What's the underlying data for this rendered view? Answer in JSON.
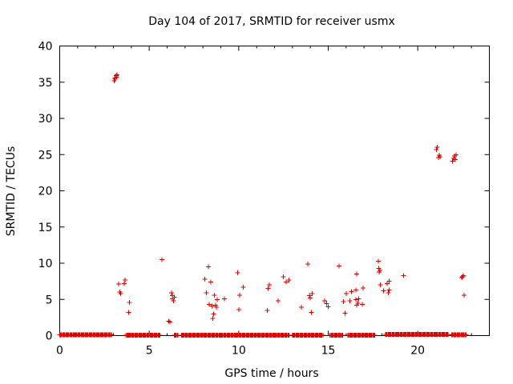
{
  "chart_data": {
    "type": "scatter",
    "title": "Day 104 of 2017, SRMTID for receiver usmx",
    "xlabel": "GPS time / hours",
    "ylabel": "SRMTID / TECUs",
    "xlim": [
      0,
      24
    ],
    "ylim": [
      0,
      40
    ],
    "xticks": [
      0,
      5,
      10,
      15,
      20
    ],
    "yticks": [
      0,
      5,
      10,
      15,
      20,
      25,
      30,
      35,
      40
    ],
    "grid": false,
    "marker": "+",
    "color": "#e00000",
    "series": [
      {
        "baseline_segments": [
          [
            0.0,
            2.9,
            0.1
          ],
          [
            3.7,
            5.6,
            0.05
          ],
          [
            6.4,
            6.6,
            0.05
          ],
          [
            6.8,
            12.8,
            0.05
          ],
          [
            13.0,
            14.7,
            0.05
          ],
          [
            15.1,
            15.8,
            0.05
          ],
          [
            16.1,
            17.6,
            0.05
          ],
          [
            18.2,
            21.7,
            0.15
          ],
          [
            21.9,
            22.7,
            0.1
          ]
        ],
        "points": [
          [
            3.05,
            35.2
          ],
          [
            3.1,
            35.6
          ],
          [
            3.15,
            35.9
          ],
          [
            3.2,
            36.0
          ],
          [
            3.08,
            35.4
          ],
          [
            3.18,
            35.7
          ],
          [
            3.3,
            7.1
          ],
          [
            3.35,
            6.0
          ],
          [
            3.4,
            5.8
          ],
          [
            3.6,
            7.2
          ],
          [
            3.65,
            7.7
          ],
          [
            3.85,
            3.2
          ],
          [
            3.9,
            4.6
          ],
          [
            5.7,
            10.5
          ],
          [
            6.1,
            2.0
          ],
          [
            6.15,
            1.9
          ],
          [
            6.25,
            5.9
          ],
          [
            6.3,
            5.1
          ],
          [
            6.35,
            4.8
          ],
          [
            6.4,
            5.3
          ],
          [
            6.3,
            5.5
          ],
          [
            8.1,
            7.8
          ],
          [
            8.2,
            5.9
          ],
          [
            8.3,
            9.5
          ],
          [
            8.35,
            4.3
          ],
          [
            8.45,
            7.4
          ],
          [
            8.5,
            4.1
          ],
          [
            8.55,
            2.4
          ],
          [
            8.6,
            3.0
          ],
          [
            8.65,
            5.6
          ],
          [
            8.7,
            4.2
          ],
          [
            8.75,
            3.9
          ],
          [
            8.8,
            5.0
          ],
          [
            9.2,
            5.1
          ],
          [
            9.95,
            8.7
          ],
          [
            10.0,
            3.6
          ],
          [
            10.05,
            5.6
          ],
          [
            10.25,
            6.7
          ],
          [
            11.6,
            3.5
          ],
          [
            11.65,
            6.5
          ],
          [
            11.7,
            7.0
          ],
          [
            12.2,
            4.8
          ],
          [
            12.5,
            8.1
          ],
          [
            12.65,
            7.4
          ],
          [
            12.8,
            7.7
          ],
          [
            13.5,
            3.9
          ],
          [
            13.85,
            9.9
          ],
          [
            13.95,
            5.5
          ],
          [
            14.0,
            5.2
          ],
          [
            14.05,
            3.2
          ],
          [
            14.1,
            5.8
          ],
          [
            14.8,
            4.8
          ],
          [
            14.9,
            4.4
          ],
          [
            15.0,
            4.0
          ],
          [
            15.6,
            9.6
          ],
          [
            15.85,
            4.7
          ],
          [
            15.95,
            3.1
          ],
          [
            16.0,
            5.8
          ],
          [
            16.2,
            4.8
          ],
          [
            16.3,
            6.1
          ],
          [
            16.55,
            5.0
          ],
          [
            16.6,
            4.2
          ],
          [
            16.55,
            6.3
          ],
          [
            16.6,
            8.5
          ],
          [
            16.65,
            4.5
          ],
          [
            16.7,
            5.1
          ],
          [
            16.9,
            4.3
          ],
          [
            16.95,
            6.6
          ],
          [
            17.8,
            10.3
          ],
          [
            17.82,
            9.3
          ],
          [
            17.85,
            8.8
          ],
          [
            17.88,
            9.0
          ],
          [
            17.9,
            7.0
          ],
          [
            18.1,
            6.2
          ],
          [
            18.3,
            7.2
          ],
          [
            18.35,
            5.9
          ],
          [
            18.4,
            6.3
          ],
          [
            18.4,
            7.5
          ],
          [
            19.2,
            8.3
          ],
          [
            21.05,
            25.7
          ],
          [
            21.1,
            26.0
          ],
          [
            21.15,
            24.6
          ],
          [
            21.2,
            24.9
          ],
          [
            21.25,
            24.7
          ],
          [
            21.95,
            24.1
          ],
          [
            22.0,
            24.5
          ],
          [
            22.05,
            24.8
          ],
          [
            22.1,
            24.3
          ],
          [
            22.15,
            25.0
          ],
          [
            22.45,
            8.0
          ],
          [
            22.5,
            8.1
          ],
          [
            22.55,
            8.3
          ],
          [
            22.6,
            5.6
          ]
        ]
      }
    ]
  }
}
